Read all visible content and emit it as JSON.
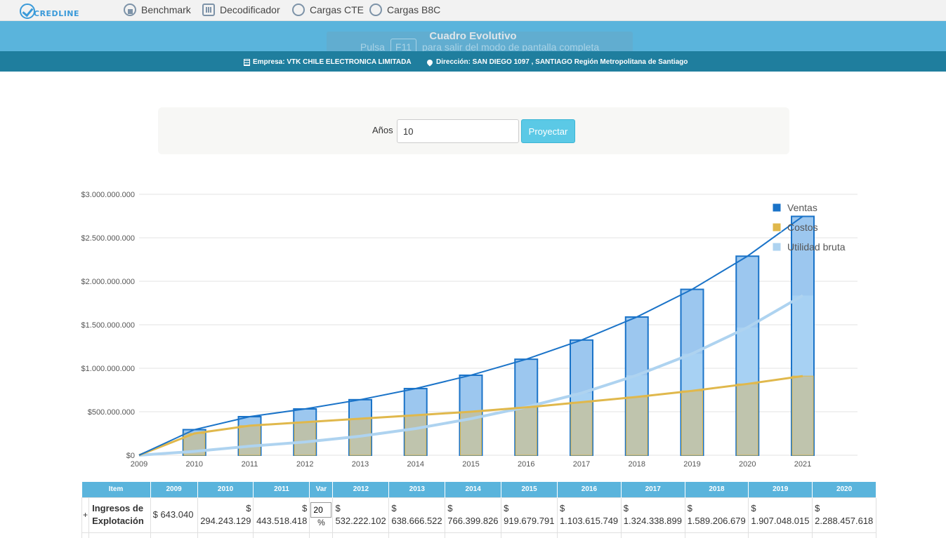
{
  "nav": {
    "brand": "CREDLINE",
    "items": [
      {
        "label": "Benchmark",
        "icon": "benchmark-icon"
      },
      {
        "label": "Decodificador",
        "icon": "decoder-icon"
      },
      {
        "label": "Cargas CTE",
        "icon": "upload-icon"
      },
      {
        "label": "Cargas B8C",
        "icon": "upload-icon"
      }
    ]
  },
  "header": {
    "title": "Cuadro Evolutivo",
    "fullscreen_prefix": "Pulsa",
    "fullscreen_key": "F11",
    "fullscreen_suffix": "para salir del modo de pantalla completa",
    "empresa": "Empresa: VTK CHILE ELECTRONICA LIMITADA",
    "direccion": "Dirección: SAN DIEGO 1097 , SANTIAGO Región Metropolitana de Santiago"
  },
  "controls": {
    "anios_label": "Años",
    "anios_value": "10",
    "proyectar_label": "Proyectar"
  },
  "chart_data": {
    "type": "bar",
    "categories": [
      "2009",
      "2010",
      "2011",
      "2012",
      "2013",
      "2014",
      "2015",
      "2016",
      "2017",
      "2018",
      "2019",
      "2020",
      "2021"
    ],
    "y_ticks": [
      "$0",
      "$500.000.000",
      "$1.000.000.000",
      "$1.500.000.000",
      "$2.000.000.000",
      "$2.500.000.000",
      "$3.000.000.000"
    ],
    "ylim": [
      0,
      3000000000
    ],
    "legend_position": "top-right",
    "series": [
      {
        "name": "Ventas",
        "color": "#1a73c8",
        "bar_fill": "#9cc7ef",
        "values": [
          643040,
          294243129,
          443518418,
          532222102,
          638666522,
          766399826,
          919679791,
          1103615749,
          1324338899,
          1589206679,
          1907048015,
          2288457618,
          2746149142
        ]
      },
      {
        "name": "Costos",
        "color": "#e0b84c",
        "bar_fill": "#c7bf96",
        "values": [
          600000,
          250000000,
          340000000,
          380000000,
          420000000,
          460000000,
          500000000,
          550000000,
          610000000,
          670000000,
          740000000,
          820000000,
          910000000
        ]
      },
      {
        "name": "Utilidad bruta",
        "color": "#aed3f0",
        "bar_fill": "#a9d2f3",
        "values": [
          43040,
          44243129,
          103518418,
          152222102,
          218666522,
          306399826,
          419679791,
          553615749,
          714338899,
          919206679,
          1167048015,
          1468457618,
          1836149142
        ]
      }
    ]
  },
  "table": {
    "headers": [
      "Item",
      "2009",
      "2010",
      "2011",
      "Var",
      "2012",
      "2013",
      "2014",
      "2015",
      "2016",
      "2017",
      "2018",
      "2019",
      "2020"
    ],
    "row": {
      "expand": "+",
      "item": "Ingresos de Explotación",
      "v2009": "$ 643.040",
      "v2010": "294.243.129",
      "v2011": "443.518.418",
      "var_value": "20",
      "var_unit": "%",
      "proj": [
        "532.222.102",
        "638.666.522",
        "766.399.826",
        "919.679.791",
        "1.103.615.749",
        "1.324.338.899",
        "1.589.206.679",
        "1.907.048.015",
        "2.288.457.618"
      ],
      "currency": "$"
    }
  }
}
